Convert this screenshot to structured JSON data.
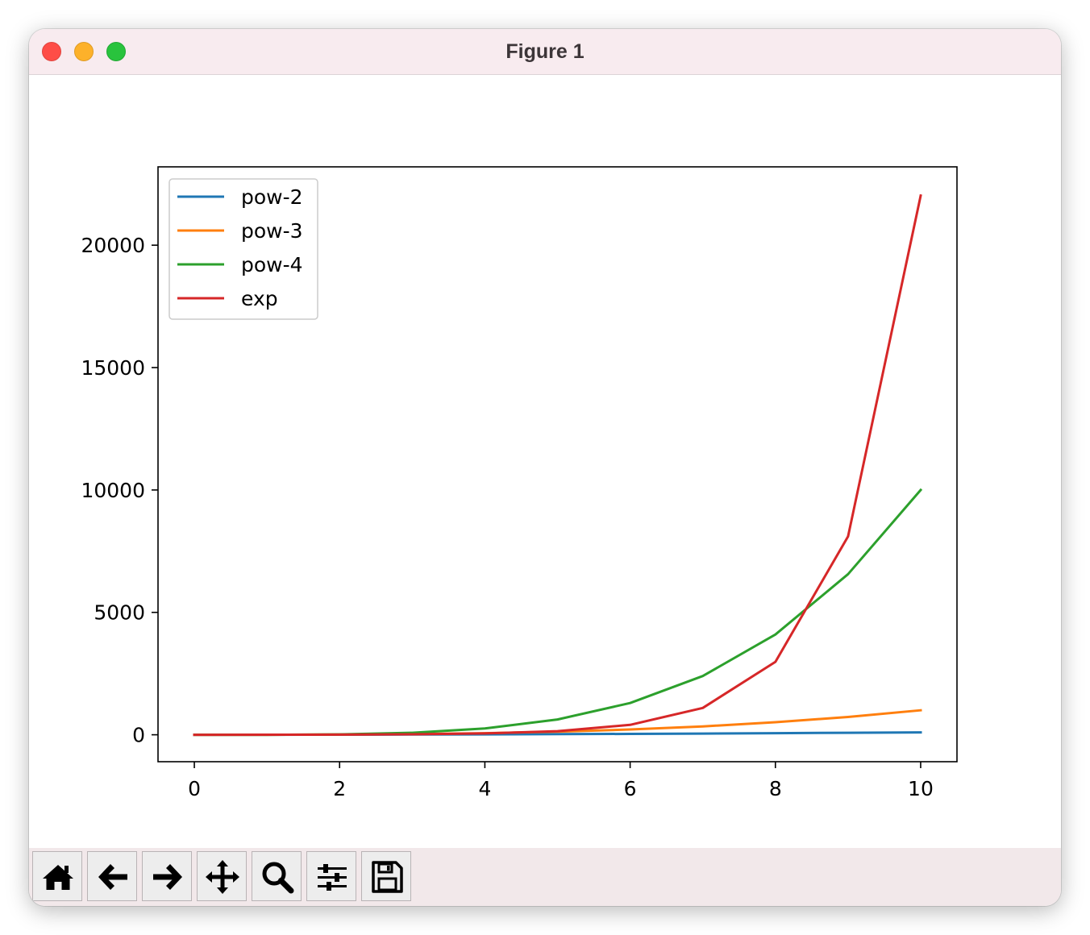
{
  "window": {
    "title": "Figure 1"
  },
  "toolbar": {
    "tools": [
      {
        "icon": "home-icon"
      },
      {
        "icon": "back-arrow-icon"
      },
      {
        "icon": "forward-arrow-icon"
      },
      {
        "icon": "pan-move-icon"
      },
      {
        "icon": "zoom-magnifier-icon"
      },
      {
        "icon": "configure-subplots-icon"
      },
      {
        "icon": "save-floppy-icon"
      }
    ]
  },
  "chart_data": {
    "type": "line",
    "title": "",
    "xlabel": "",
    "ylabel": "",
    "xlim": [
      -0.5,
      10.5
    ],
    "ylim": [
      -1100,
      23200
    ],
    "xticks": [
      0,
      2,
      4,
      6,
      8,
      10
    ],
    "yticks": [
      0,
      5000,
      10000,
      15000,
      20000
    ],
    "grid": false,
    "legend": "top-left",
    "x": [
      0,
      1,
      2,
      3,
      4,
      5,
      6,
      7,
      8,
      9,
      10
    ],
    "series": [
      {
        "name": "pow-2",
        "color": "#1f77b4",
        "values": [
          0,
          1,
          4,
          9,
          16,
          25,
          36,
          49,
          64,
          81,
          100
        ]
      },
      {
        "name": "pow-3",
        "color": "#ff7f0e",
        "values": [
          0,
          1,
          8,
          27,
          64,
          125,
          216,
          343,
          512,
          729,
          1000
        ]
      },
      {
        "name": "pow-4",
        "color": "#2ca02c",
        "values": [
          0,
          1,
          16,
          81,
          256,
          625,
          1296,
          2401,
          4096,
          6561,
          10000
        ]
      },
      {
        "name": "exp",
        "color": "#d62728",
        "values": [
          1,
          2.718,
          7.389,
          20.09,
          54.6,
          148.4,
          403.4,
          1096.6,
          2981,
          8103,
          22026
        ]
      }
    ]
  }
}
